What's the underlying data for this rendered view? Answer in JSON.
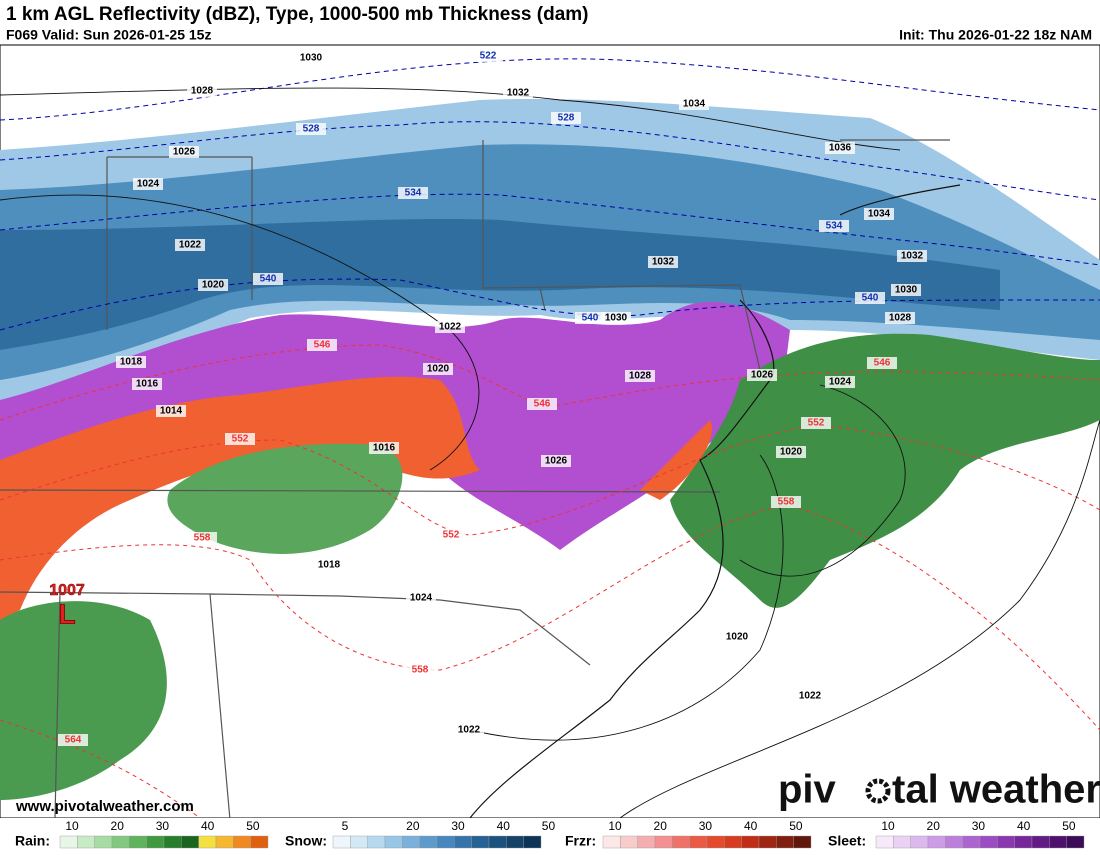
{
  "header": {
    "title": "1 km AGL Reflectivity (dBZ), Type, 1000-500 mb Thickness (dam)",
    "valid": "F069 Valid: Sun 2026-01-25 15z",
    "init": "Init: Thu 2026-01-22 18z NAM"
  },
  "map": {
    "isobars": [
      1030,
      1028,
      1032,
      1034,
      1026,
      1036,
      1024,
      1034,
      1022,
      1032,
      1032,
      1020,
      1030,
      1030,
      1028,
      1022,
      1018,
      1020,
      1028,
      1026,
      1016,
      1024,
      1014,
      1016,
      1020,
      1026,
      1018,
      1024,
      1020,
      1022,
      1022
    ],
    "thickness_cold": [
      522,
      528,
      528,
      534,
      534,
      540,
      540,
      540
    ],
    "thickness_warm": [
      546,
      546,
      546,
      552,
      552,
      552,
      558,
      558,
      558,
      564
    ],
    "low": {
      "pressure": "1007",
      "symbol": "L"
    }
  },
  "watermark": "www.pivotalweather.com",
  "logo": {
    "left": "piv",
    "right": "tal weather"
  },
  "legend": [
    {
      "label": "Rain:",
      "ticks": [
        10,
        20,
        30,
        40,
        50
      ]
    },
    {
      "label": "Snow:",
      "ticks": [
        5,
        20,
        30,
        40,
        50
      ]
    },
    {
      "label": "Frzr:",
      "ticks": [
        10,
        20,
        30,
        40,
        50
      ]
    },
    {
      "label": "Sleet:",
      "ticks": [
        10,
        20,
        30,
        40,
        50
      ]
    }
  ]
}
